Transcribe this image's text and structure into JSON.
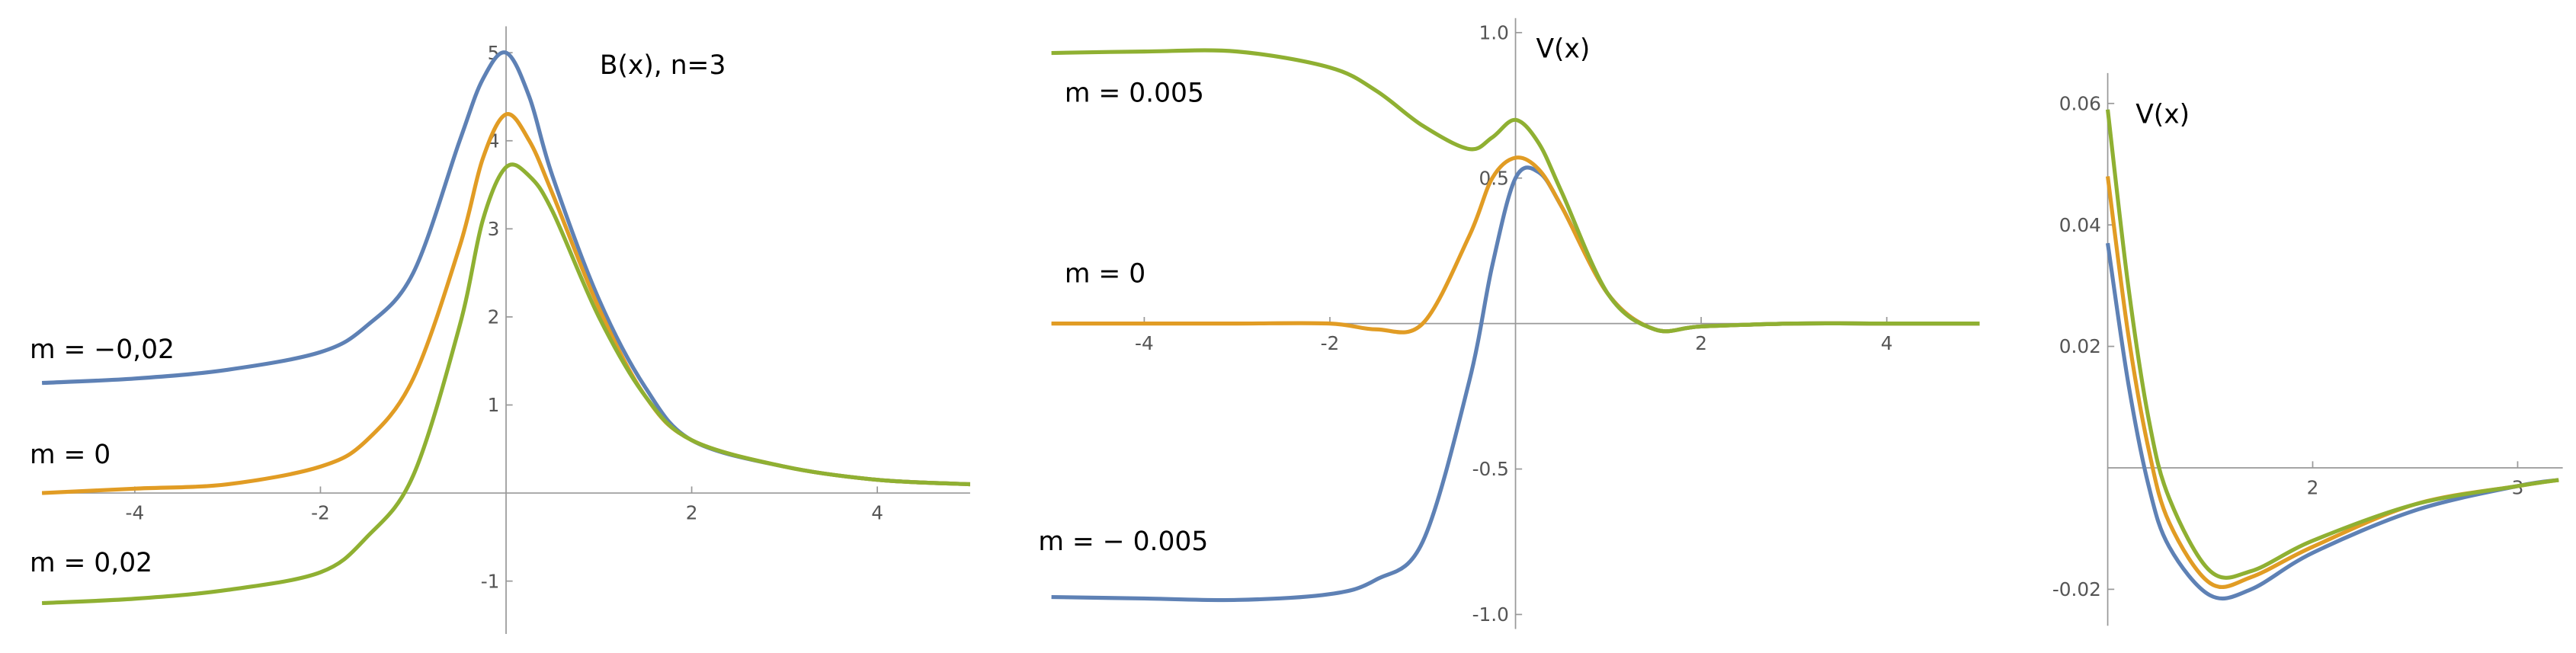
{
  "chart_data": [
    {
      "type": "line",
      "title": "B(x), n=3",
      "x": [
        -5,
        -4,
        -3,
        -2,
        -1.5,
        -1,
        -0.5,
        -0.25,
        0,
        0.25,
        0.5,
        1,
        1.5,
        2,
        3,
        4,
        5
      ],
      "series": [
        {
          "name": "m = −0,02",
          "color": "#5e81b5",
          "values": [
            1.25,
            1.3,
            1.4,
            1.6,
            1.9,
            2.5,
            4.0,
            4.7,
            5.0,
            4.5,
            3.6,
            2.2,
            1.2,
            0.6,
            0.3,
            0.15,
            0.1
          ]
        },
        {
          "name": "m = 0",
          "color": "#e19c24",
          "values": [
            0.0,
            0.05,
            0.1,
            0.3,
            0.6,
            1.3,
            2.8,
            3.8,
            4.3,
            4.0,
            3.4,
            2.1,
            1.1,
            0.6,
            0.3,
            0.15,
            0.1
          ]
        },
        {
          "name": "m = 0,02",
          "color": "#8fb032",
          "values": [
            -1.25,
            -1.2,
            -1.1,
            -0.9,
            -0.5,
            0.2,
            1.9,
            3.1,
            3.7,
            3.6,
            3.2,
            2.0,
            1.1,
            0.6,
            0.3,
            0.15,
            0.1
          ]
        }
      ],
      "xlim": [
        -5,
        5
      ],
      "ylim": [
        -1.6,
        5.3
      ],
      "xticks": [
        -4,
        -2,
        2,
        4
      ],
      "yticks": [
        -1,
        1,
        2,
        3,
        4,
        5
      ]
    },
    {
      "type": "line",
      "title": "V(x)",
      "x": [
        -5,
        -4,
        -3,
        -2,
        -1.5,
        -1,
        -0.5,
        -0.25,
        0,
        0.25,
        0.5,
        1,
        1.5,
        2,
        3,
        4,
        5
      ],
      "series": [
        {
          "name": "m = − 0.005",
          "color": "#5e81b5",
          "values": [
            -0.94,
            -0.945,
            -0.95,
            -0.93,
            -0.88,
            -0.75,
            -0.2,
            0.2,
            0.5,
            0.52,
            0.4,
            0.1,
            -0.02,
            -0.01,
            0,
            0,
            0
          ]
        },
        {
          "name": "m = 0",
          "color": "#e19c24",
          "values": [
            0,
            0,
            0,
            0,
            -0.02,
            0.0,
            0.3,
            0.5,
            0.57,
            0.53,
            0.4,
            0.1,
            -0.02,
            -0.01,
            0,
            0,
            0
          ]
        },
        {
          "name": "m = 0.005",
          "color": "#8fb032",
          "values": [
            0.93,
            0.935,
            0.935,
            0.88,
            0.8,
            0.68,
            0.6,
            0.64,
            0.7,
            0.62,
            0.45,
            0.1,
            -0.02,
            -0.01,
            0,
            0,
            0
          ]
        }
      ],
      "xlim": [
        -5,
        5
      ],
      "ylim": [
        -1.05,
        1.05
      ],
      "xticks": [
        -4,
        -2,
        2,
        4
      ],
      "yticks": [
        {
          "value": -1,
          "label": "-1.0"
        },
        -0.5,
        0.5,
        {
          "value": 1,
          "label": "1.0"
        }
      ]
    },
    {
      "type": "line",
      "title": "V(x)",
      "x": [
        1,
        1.1,
        1.2,
        1.3,
        1.5,
        1.7,
        2,
        2.5,
        3,
        3.2
      ],
      "series": [
        {
          "color": "#5e81b5",
          "values": [
            0.037,
            0.014,
            -0.003,
            -0.013,
            -0.021,
            -0.02,
            -0.014,
            -0.007,
            -0.003,
            -0.002
          ]
        },
        {
          "color": "#e19c24",
          "values": [
            0.048,
            0.022,
            0.003,
            -0.009,
            -0.019,
            -0.018,
            -0.013,
            -0.006,
            -0.003,
            -0.002
          ]
        },
        {
          "color": "#8fb032",
          "values": [
            0.059,
            0.03,
            0.008,
            -0.005,
            -0.017,
            -0.017,
            -0.012,
            -0.006,
            -0.003,
            -0.002
          ]
        }
      ],
      "xlim": [
        1,
        3.22
      ],
      "ylim": [
        -0.026,
        0.065
      ],
      "xticks": [
        2,
        3
      ],
      "yticks": [
        -0.02,
        0.02,
        0.04,
        0.06
      ]
    }
  ]
}
